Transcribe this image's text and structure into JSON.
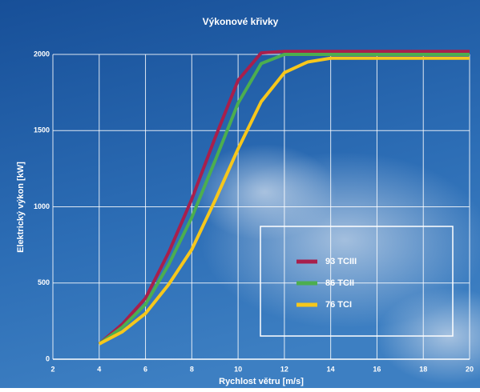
{
  "chart_data": {
    "type": "line",
    "title": "Výkonové křivky",
    "x_label": "Rychlost větru [m/s]",
    "y_label": "Elektrický výkon [kW]",
    "x": [
      4,
      5,
      6,
      7,
      8,
      9,
      10,
      11,
      12,
      13,
      14,
      15,
      16,
      17,
      18,
      19,
      20
    ],
    "series": [
      {
        "name": "93 TCIII",
        "color": "#a81f4c",
        "values": [
          100,
          230,
          400,
          700,
          1050,
          1450,
          1830,
          2010,
          2020,
          2020,
          2020,
          2020,
          2020,
          2020,
          2020,
          2020,
          2020
        ]
      },
      {
        "name": "86 TCII",
        "color": "#4cae4f",
        "values": [
          100,
          210,
          360,
          620,
          930,
          1300,
          1680,
          1940,
          2000,
          2000,
          2000,
          2000,
          2000,
          2000,
          2000,
          2000,
          2000
        ]
      },
      {
        "name": "76 TCI",
        "color": "#f6c71c",
        "values": [
          100,
          180,
          300,
          490,
          720,
          1040,
          1380,
          1690,
          1880,
          1950,
          1975,
          1975,
          1975,
          1975,
          1975,
          1975,
          1975
        ]
      }
    ],
    "xlim": [
      2,
      20
    ],
    "xticks": [
      2,
      4,
      6,
      8,
      10,
      12,
      14,
      16,
      18,
      20
    ],
    "ylim": [
      0,
      2000
    ],
    "yticks": [
      0,
      500,
      1000,
      1500,
      2000
    ],
    "grid": true
  }
}
